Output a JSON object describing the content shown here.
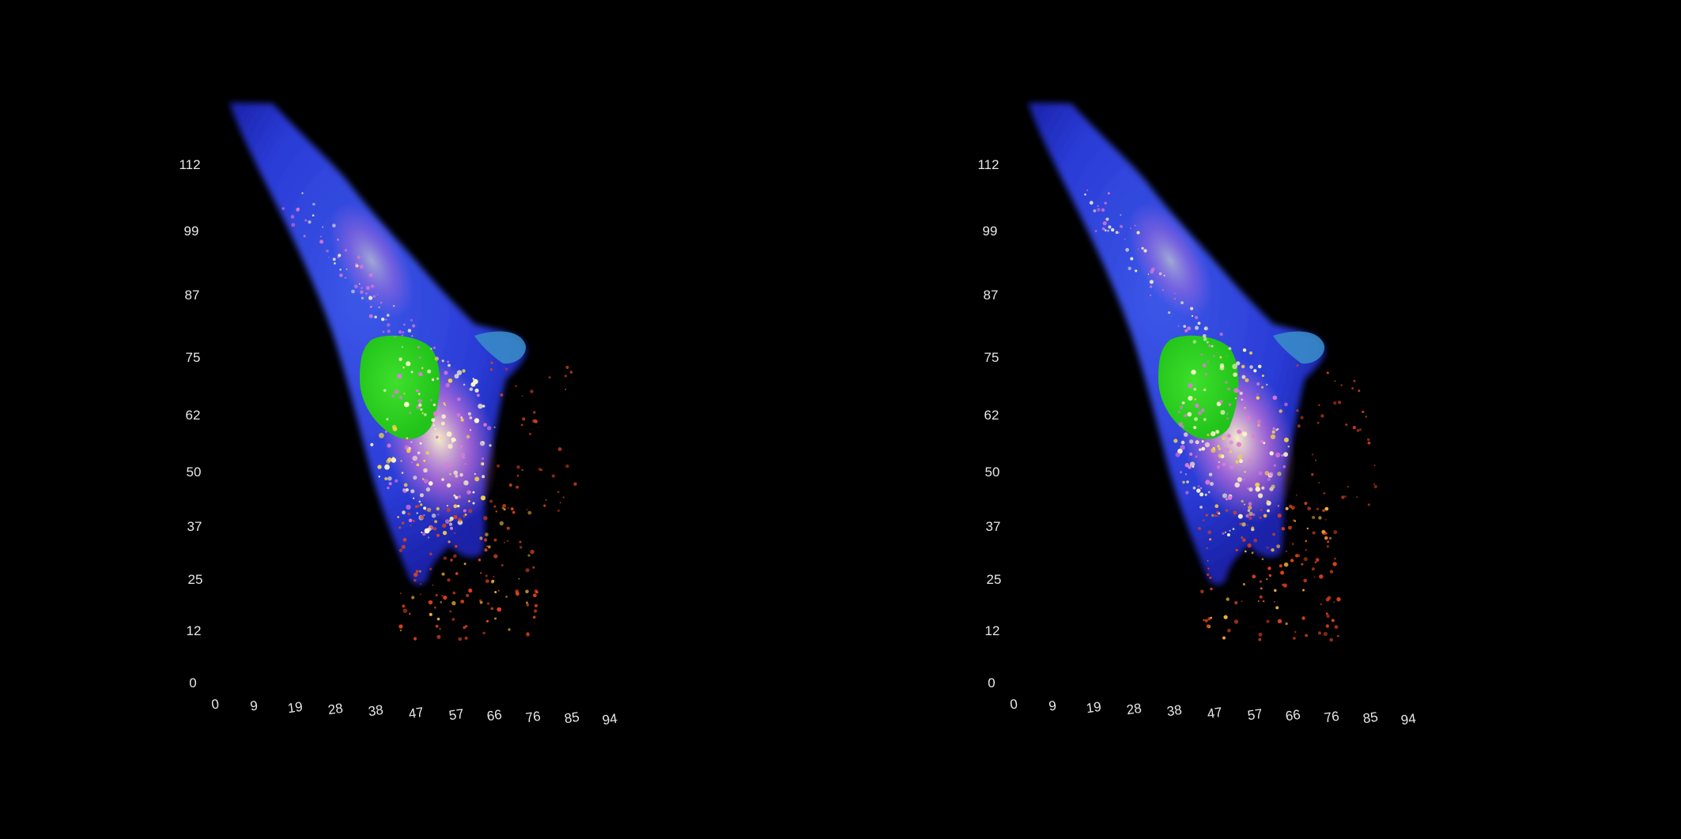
{
  "views": [
    {
      "id": "left",
      "y_ticks": [
        "0",
        "12",
        "25",
        "37",
        "50",
        "62",
        "75",
        "87",
        "99",
        "112"
      ],
      "x_ticks": [
        "0",
        "9",
        "19",
        "28",
        "38",
        "47",
        "57",
        "66",
        "76",
        "85",
        "94"
      ]
    },
    {
      "id": "right",
      "y_ticks": [
        "0",
        "12",
        "25",
        "37",
        "50",
        "62",
        "75",
        "87",
        "99",
        "112"
      ],
      "x_ticks": [
        "0",
        "9",
        "19",
        "28",
        "38",
        "47",
        "57",
        "66",
        "76",
        "85",
        "94"
      ]
    }
  ],
  "colors": {
    "background": "#000000",
    "cell_body": "#2a3bd6",
    "cell_edge": "#1a22a8",
    "nucleus": "#22c31a",
    "punctae_hot": "#fff6c8",
    "punctae_mid": "#e07ad8",
    "punctae_outer": "#e0431c",
    "tick_label": "#e8e8e8"
  }
}
